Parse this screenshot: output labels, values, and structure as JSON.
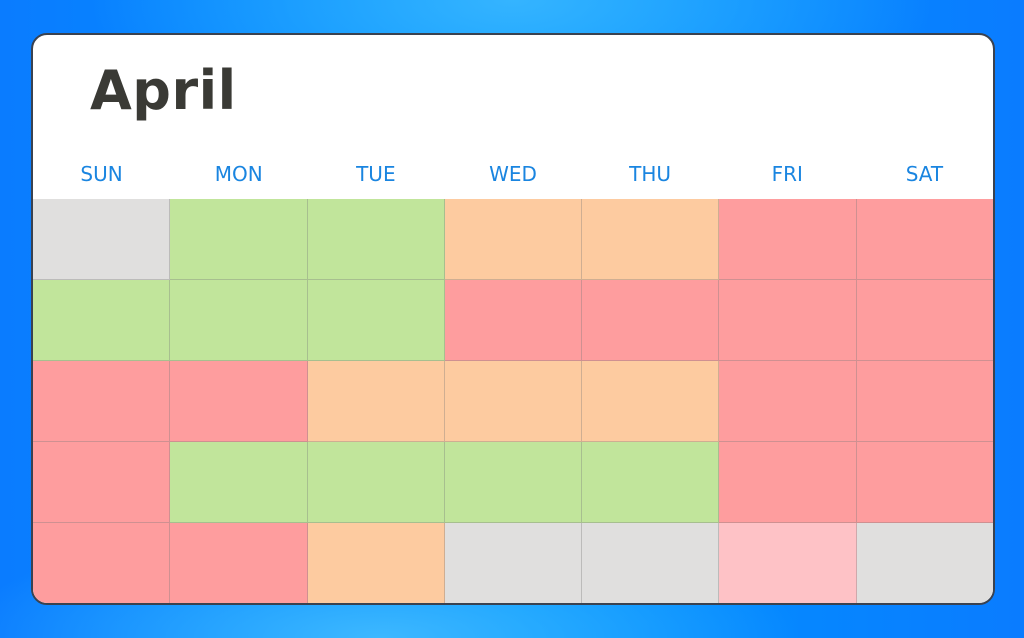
{
  "title": "April",
  "weekdays": [
    "SUN",
    "MON",
    "TUE",
    "WED",
    "THU",
    "FRI",
    "SAT"
  ],
  "colors": {
    "empty": "#e0dfde",
    "green": "#c1e59b",
    "orange": "#fdcba0",
    "red": "#fe9d9e",
    "pink": "#fec2c6"
  },
  "weeks": [
    [
      "empty",
      "green",
      "green",
      "orange",
      "orange",
      "red",
      "red"
    ],
    [
      "green",
      "green",
      "green",
      "red",
      "red",
      "red",
      "red"
    ],
    [
      "red",
      "red",
      "orange",
      "orange",
      "orange",
      "red",
      "red"
    ],
    [
      "red",
      "green",
      "green",
      "green",
      "green",
      "red",
      "red"
    ],
    [
      "red",
      "red",
      "orange",
      "empty",
      "empty",
      "pink",
      "empty"
    ]
  ]
}
